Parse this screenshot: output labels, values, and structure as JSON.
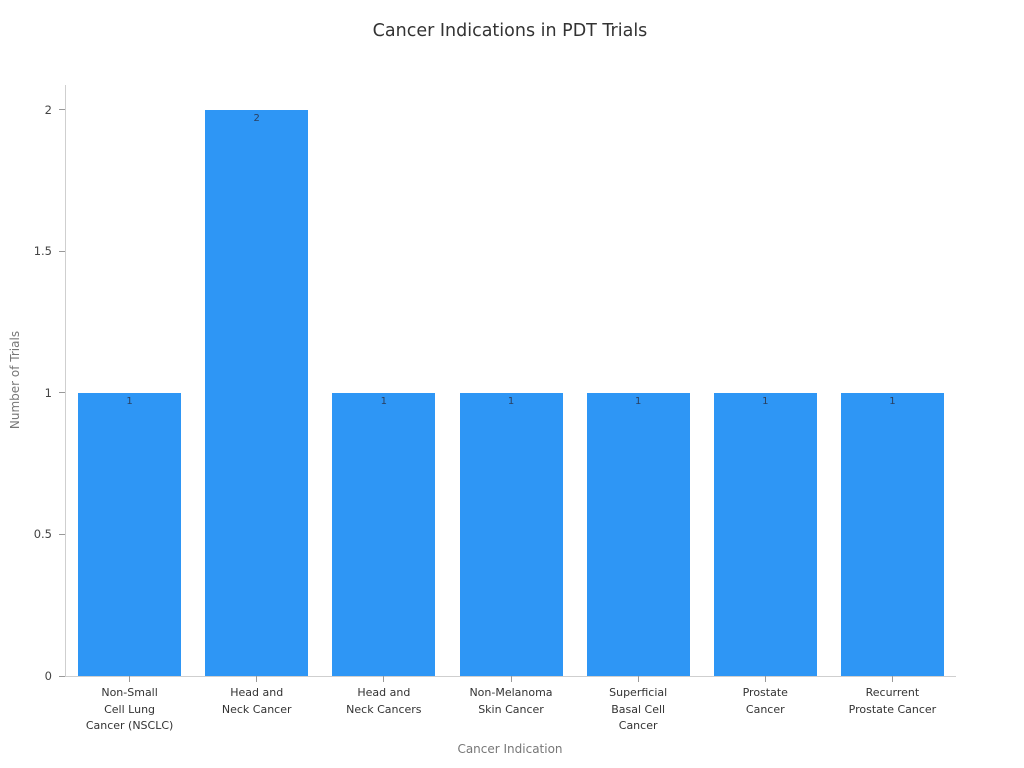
{
  "title": "Cancer Indications in PDT Trials",
  "chart_data": {
    "type": "bar",
    "title": "Cancer Indications in PDT Trials",
    "xlabel": "Cancer Indication",
    "ylabel": "Number of Trials",
    "categories": [
      "Non-Small Cell Lung Cancer (NSCLC)",
      "Head and Neck Cancer",
      "Head and Neck Cancers",
      "Non-Melanoma Skin Cancer",
      "Superficial Basal Cell Cancer",
      "Prostate Cancer",
      "Recurrent Prostate Cancer"
    ],
    "category_labels_wrapped": [
      [
        "Non-Small",
        "Cell Lung",
        "Cancer (NSCLC)"
      ],
      [
        "Head and",
        "Neck Cancer"
      ],
      [
        "Head and",
        "Neck Cancers"
      ],
      [
        "Non-Melanoma",
        "Skin Cancer"
      ],
      [
        "Superficial",
        "Basal Cell",
        "Cancer"
      ],
      [
        "Prostate",
        "Cancer"
      ],
      [
        "Recurrent",
        "Prostate Cancer"
      ]
    ],
    "values": [
      1,
      2,
      1,
      1,
      1,
      1,
      1
    ],
    "bar_labels": [
      "1",
      "2",
      "1",
      "1",
      "1",
      "1",
      "1"
    ],
    "y_ticks": [
      0,
      0.5,
      1,
      1.5,
      2
    ],
    "y_tick_labels": [
      "0",
      "0.5",
      "1",
      "1.5",
      "2"
    ],
    "ylim": [
      0,
      2.088
    ],
    "bar_color": "#2E96F5",
    "label_color": "#2a3f5f",
    "grid": false,
    "legend": "none"
  }
}
